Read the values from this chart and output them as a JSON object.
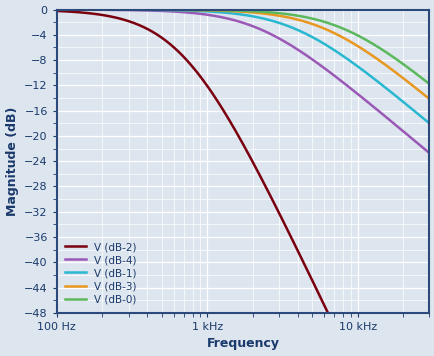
{
  "xlabel": "Frequency",
  "ylabel": "Magnitude (dB)",
  "freq_min": 100,
  "freq_max": 30000,
  "ylim": [
    -48,
    0
  ],
  "yticks": [
    0,
    -4,
    -8,
    -12,
    -16,
    -20,
    -24,
    -28,
    -32,
    -36,
    -40,
    -44,
    -48
  ],
  "xtick_positions": [
    100,
    1000,
    10000
  ],
  "xtick_labels": [
    "100 Hz",
    "1 kHz",
    "10 kHz"
  ],
  "background_color": "#dde5ef",
  "grid_color": "#ffffff",
  "border_color": "#2b4a7a",
  "series": [
    {
      "label": "V (dB-0)",
      "color": "#5cb85c",
      "fc": 8000,
      "n": 1.0
    },
    {
      "label": "V (dB-1)",
      "color": "#29b8d0",
      "fc": 3800,
      "n": 1.0
    },
    {
      "label": "V (dB-2)",
      "color": "#7a0010",
      "fc": 700,
      "n": 2.5
    },
    {
      "label": "V (dB-3)",
      "color": "#e89820",
      "fc": 6000,
      "n": 1.0
    },
    {
      "label": "V (dB-4)",
      "color": "#9b59b6",
      "fc": 2200,
      "n": 1.0
    }
  ],
  "plot_order": [
    2,
    4,
    1,
    3,
    0
  ],
  "linewidth": 1.8,
  "legend_fontsize": 7.5,
  "axis_label_fontsize": 9,
  "tick_fontsize": 8,
  "axis_label_color": "#1a3a6b",
  "tick_color": "#1a3a6b"
}
